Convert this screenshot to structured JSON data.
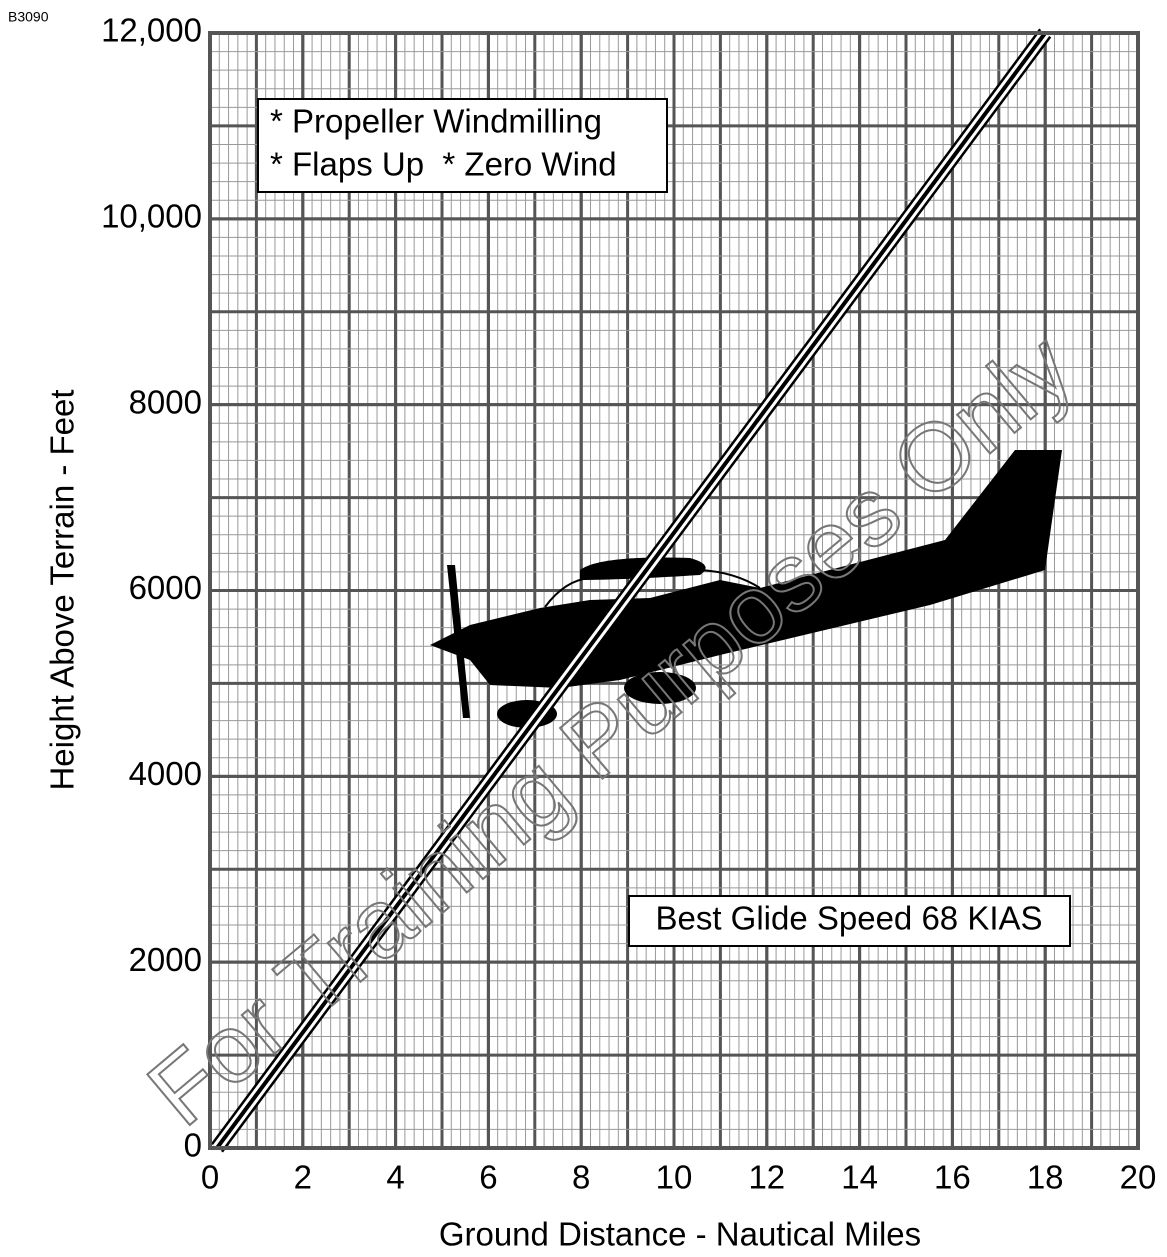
{
  "chart_data": {
    "type": "line",
    "code": "B3090",
    "x_label": "Ground Distance - Nautical Miles",
    "y_label": "Height Above Terrain - Feet",
    "annotations": [
      "* Propeller Windmilling",
      "* Flaps Up  * Zero Wind",
      "Best Glide Speed 68 KIAS"
    ],
    "watermark": "For Training Purposes Only",
    "x": [
      0.15,
      18
    ],
    "series": [
      {
        "color": "#000000",
        "values": [
          0,
          12000
        ]
      }
    ],
    "xlim": [
      0,
      20
    ],
    "ylim": [
      0,
      12000
    ],
    "xticks": [
      0,
      2,
      4,
      6,
      8,
      10,
      12,
      14,
      16,
      18,
      20
    ],
    "yticks": [
      0,
      2000,
      4000,
      6000,
      8000,
      {
        "value": 10000,
        "label": "10,000"
      },
      {
        "value": 12000,
        "label": "12,000"
      }
    ],
    "grid": true
  }
}
